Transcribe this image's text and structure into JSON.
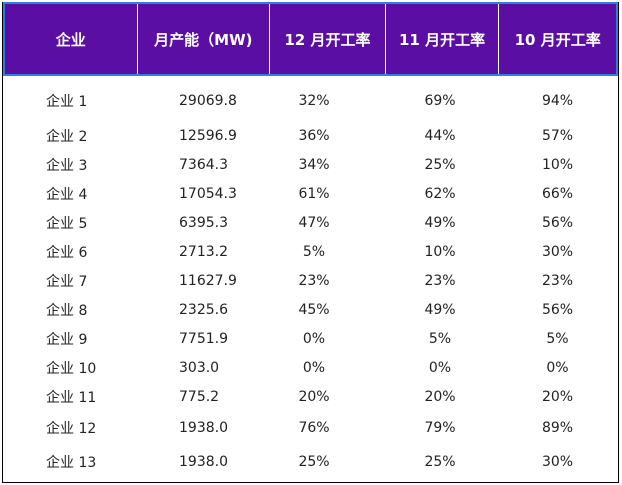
{
  "headers": [
    "企业",
    "月产能（MW)",
    "12 月开工率",
    "11 月开工率",
    "10 月开工率"
  ],
  "rows": [
    [
      "企业 1",
      "29069.8",
      "32%",
      "69%",
      "94%"
    ],
    [
      "企业 2",
      "12596.9",
      "36%",
      "44%",
      "57%"
    ],
    [
      "企业 3",
      "7364.3",
      "34%",
      "25%",
      "10%"
    ],
    [
      "企业 4",
      "17054.3",
      "61%",
      "62%",
      "66%"
    ],
    [
      "企业 5",
      "6395.3",
      "47%",
      "49%",
      "56%"
    ],
    [
      "企业 6",
      "2713.2",
      "5%",
      "10%",
      "30%"
    ],
    [
      "企业 7",
      "11627.9",
      "23%",
      "23%",
      "23%"
    ],
    [
      "企业 8",
      "2325.6",
      "45%",
      "49%",
      "56%"
    ],
    [
      "企业 9",
      "7751.9",
      "0%",
      "5%",
      "5%"
    ],
    [
      "企业 10",
      "303.0",
      "0%",
      "0%",
      "0%"
    ],
    [
      "企业 11",
      "775.2",
      "20%",
      "20%",
      "20%"
    ],
    [
      "企业 12",
      "1938.0",
      "76%",
      "79%",
      "89%"
    ],
    [
      "企业 13",
      "1938.0",
      "25%",
      "25%",
      "30%"
    ]
  ],
  "colors": {
    "header_bg": "#5a0ea3",
    "header_border": "#2f7fe0",
    "header_text": "#ffffff"
  }
}
